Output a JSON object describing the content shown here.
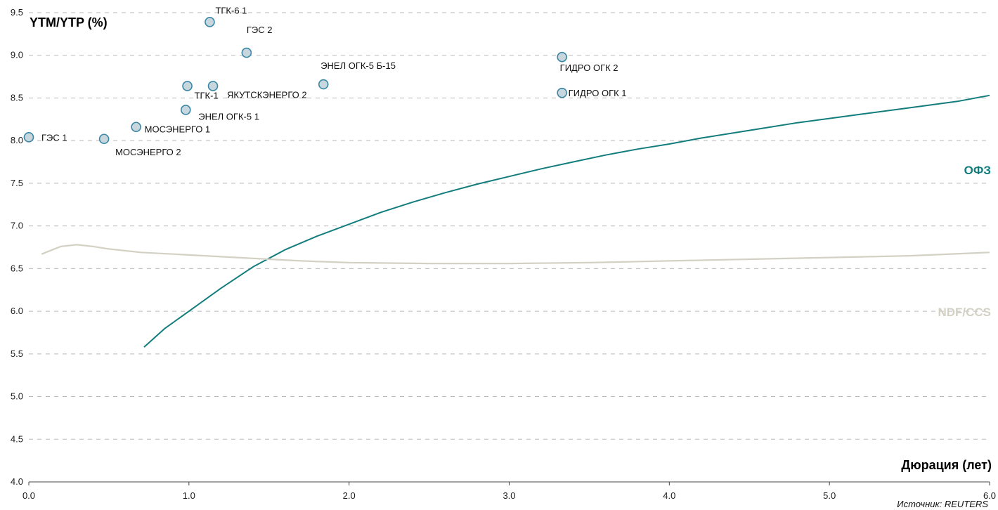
{
  "chart_data": {
    "type": "scatter",
    "ylabel": "YTM/YTP (%)",
    "xlabel": "Дюрация (лет)",
    "source": "Источник: REUTERS",
    "xlim": [
      0,
      6
    ],
    "ylim": [
      4,
      9.5
    ],
    "x_ticks": [
      "0.0",
      "1.0",
      "2.0",
      "3.0",
      "4.0",
      "5.0",
      "6.0"
    ],
    "y_ticks": [
      "4.0",
      "4.5",
      "5.0",
      "5.5",
      "6.0",
      "6.5",
      "7.0",
      "7.5",
      "8.0",
      "8.5",
      "9.0",
      "9.5"
    ],
    "grid": true,
    "points": [
      {
        "label": "ГЭС 1",
        "x": 0.0,
        "y": 8.04
      },
      {
        "label": "МОСЭНЕРГО 2",
        "x": 0.47,
        "y": 8.02
      },
      {
        "label": "МОСЭНЕРГО 1",
        "x": 0.67,
        "y": 8.16
      },
      {
        "label": "ЭНЕЛ ОГК-5 1",
        "x": 0.98,
        "y": 8.36
      },
      {
        "label": "ТГК-1",
        "x": 0.99,
        "y": 8.64
      },
      {
        "label": "ТГК-6 1",
        "x": 1.13,
        "y": 9.39
      },
      {
        "label": "ЯКУТСКЭНЕРГО 2",
        "x": 1.15,
        "y": 8.64
      },
      {
        "label": "ГЭС 2",
        "x": 1.36,
        "y": 9.03
      },
      {
        "label": "ЭНЕЛ ОГК-5 Б-15",
        "x": 1.84,
        "y": 8.66
      },
      {
        "label": "ГИДРО ОГК 2",
        "x": 3.33,
        "y": 8.98
      },
      {
        "label": "ГИДРО ОГК 1",
        "x": 3.33,
        "y": 8.56
      }
    ],
    "series": [
      {
        "name": "ОФЗ",
        "color": "#137d7d",
        "x": [
          0.72,
          0.85,
          1.0,
          1.2,
          1.4,
          1.6,
          1.8,
          2.0,
          2.2,
          2.4,
          2.6,
          2.8,
          3.0,
          3.2,
          3.4,
          3.6,
          3.8,
          4.0,
          4.2,
          4.4,
          4.6,
          4.8,
          5.0,
          5.2,
          5.4,
          5.6,
          5.8,
          6.0
        ],
        "y": [
          5.58,
          5.8,
          6.0,
          6.27,
          6.52,
          6.72,
          6.88,
          7.02,
          7.16,
          7.28,
          7.39,
          7.49,
          7.58,
          7.67,
          7.75,
          7.83,
          7.9,
          7.96,
          8.03,
          8.09,
          8.15,
          8.21,
          8.26,
          8.31,
          8.36,
          8.41,
          8.46,
          8.53
        ]
      },
      {
        "name": "NDF/CCS",
        "color": "#d3d1c3",
        "x": [
          0.08,
          0.2,
          0.3,
          0.4,
          0.5,
          0.7,
          0.9,
          1.1,
          1.3,
          1.5,
          1.7,
          2.0,
          2.5,
          3.0,
          3.5,
          4.0,
          4.5,
          5.0,
          5.5,
          6.0
        ],
        "y": [
          6.67,
          6.76,
          6.78,
          6.76,
          6.73,
          6.69,
          6.67,
          6.65,
          6.63,
          6.61,
          6.59,
          6.57,
          6.56,
          6.56,
          6.57,
          6.59,
          6.61,
          6.63,
          6.65,
          6.69
        ]
      }
    ],
    "point_color": "#c8d6dd",
    "point_stroke": "#3a87a6"
  }
}
